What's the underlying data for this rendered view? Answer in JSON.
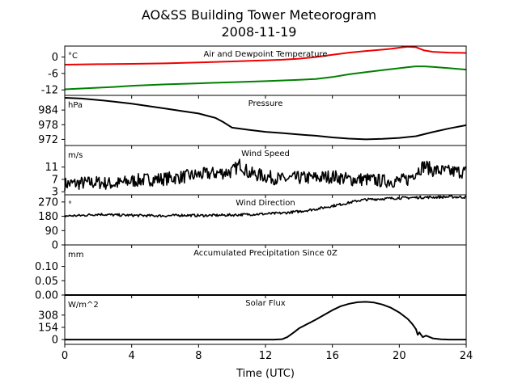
{
  "title": "AO&SS Building Tower Meteorogram",
  "subtitle": "2008-11-19",
  "chart_data": {
    "type": "line",
    "xlabel": "Time (UTC)",
    "xlim": [
      0,
      24
    ],
    "xticks": [
      0,
      4,
      8,
      12,
      16,
      20,
      24
    ],
    "panels": [
      {
        "title": "Air and Dewpoint Temperature",
        "unit": "°C",
        "ylim": [
          -14,
          4
        ],
        "yticks": [
          -12,
          -6,
          0
        ],
        "series": [
          {
            "color": "#ee0000",
            "x": [
              0,
              2,
              4,
              6,
              8,
              10,
              12,
              13,
              14,
              15,
              16,
              17,
              18,
              19,
              19.5,
              20,
              20.5,
              21,
              21.5,
              22,
              23,
              24
            ],
            "y": [
              -2.8,
              -2.6,
              -2.5,
              -2.3,
              -2.0,
              -1.6,
              -1.2,
              -1.0,
              -0.6,
              0.0,
              0.8,
              1.6,
              2.2,
              2.7,
              3.0,
              3.4,
              3.8,
              3.6,
              2.4,
              1.9,
              1.6,
              1.5
            ]
          },
          {
            "color": "#008000",
            "x": [
              0,
              1,
              2,
              3,
              4,
              6,
              8,
              10,
              12,
              14,
              15,
              16,
              17,
              18,
              19,
              20,
              20.5,
              21,
              21.5,
              22,
              23,
              24
            ],
            "y": [
              -11.8,
              -11.5,
              -11.2,
              -10.9,
              -10.5,
              -10.0,
              -9.6,
              -9.2,
              -8.8,
              -8.3,
              -8.0,
              -7.3,
              -6.3,
              -5.5,
              -4.8,
              -4.1,
              -3.7,
              -3.4,
              -3.4,
              -3.6,
              -4.1,
              -4.6
            ]
          }
        ]
      },
      {
        "title": "Pressure",
        "unit": "hPa",
        "ylim": [
          969.5,
          990
        ],
        "yticks": [
          972,
          978,
          984
        ],
        "series": [
          {
            "color": "#000000",
            "x": [
              0,
              1,
              2,
              3,
              4,
              5,
              6,
              7,
              8,
              9,
              9.5,
              10,
              11,
              12,
              13,
              14,
              15,
              16,
              17,
              18,
              19,
              20,
              21,
              22,
              23,
              24
            ],
            "y": [
              989,
              988.7,
              988.1,
              987.4,
              986.6,
              985.6,
              984.6,
              983.6,
              982.6,
              980.8,
              979.0,
              976.8,
              975.9,
              975.1,
              974.6,
              974.0,
              973.5,
              972.8,
              972.3,
              972.0,
              972.2,
              972.6,
              973.3,
              975.0,
              976.5,
              977.8
            ]
          }
        ]
      },
      {
        "title": "Wind Speed",
        "unit": "m/s",
        "ylim": [
          2,
          18
        ],
        "yticks": [
          3,
          7,
          11
        ],
        "series": [
          {
            "color": "#000000",
            "x": [
              0,
              1,
              2,
              3,
              4,
              5,
              6,
              7,
              8,
              9,
              10,
              10.5,
              11,
              12,
              13,
              14,
              15,
              16,
              17,
              18,
              19,
              20,
              20.5,
              21,
              21.5,
              22,
              23,
              24
            ],
            "y": [
              5.5,
              5.8,
              6.0,
              5.5,
              6.5,
              7.0,
              7.2,
              7.8,
              8.5,
              9.0,
              9.5,
              12.0,
              9.0,
              8.0,
              7.0,
              7.5,
              7.5,
              8.0,
              7.0,
              7.0,
              6.5,
              6.5,
              7.0,
              9.5,
              11.5,
              10.0,
              9.5,
              9.5
            ],
            "noise": 2.2
          }
        ]
      },
      {
        "title": "Wind Direction",
        "unit": "°",
        "ylim": [
          0,
          315
        ],
        "yticks": [
          0,
          90,
          180,
          270
        ],
        "series": [
          {
            "color": "#000000",
            "x": [
              0,
              1,
              2,
              3,
              4,
              5,
              6,
              7,
              8,
              9,
              10,
              11,
              12,
              13,
              14,
              15,
              16,
              17,
              17.5,
              18,
              19,
              20,
              21,
              22,
              23,
              24
            ],
            "y": [
              182,
              185,
              193,
              188,
              186,
              184,
              183,
              187,
              185,
              186,
              188,
              192,
              195,
              200,
              210,
              225,
              245,
              265,
              278,
              285,
              290,
              295,
              298,
              300,
              302,
              300
            ],
            "noise": 8
          }
        ]
      },
      {
        "title": "Accumulated Precipitation Since 0Z",
        "unit": "mm",
        "ylim": [
          0,
          0.175
        ],
        "yticks": [
          0.0,
          0.05,
          0.1
        ],
        "ytick_labels": [
          "0.00",
          "0.05",
          "0.10"
        ],
        "series": [
          {
            "color": "#000000",
            "x": [
              0,
              24
            ],
            "y": [
              0,
              0
            ]
          }
        ]
      },
      {
        "title": "Solar Flux",
        "unit": "W/m^2",
        "ylim": [
          -60,
          560
        ],
        "yticks": [
          0,
          154,
          308
        ],
        "series": [
          {
            "color": "#000000",
            "x": [
              0,
              12.5,
              13,
              13.3,
              13.7,
              14,
              15,
              16,
              16.5,
              17,
              17.5,
              18,
              18.5,
              19,
              19.5,
              20,
              20.5,
              20.8,
              21,
              21.1,
              21.2,
              21.4,
              21.6,
              22,
              22.5,
              23,
              24
            ],
            "y": [
              0,
              0,
              5,
              30,
              90,
              140,
              250,
              370,
              420,
              450,
              470,
              475,
              465,
              440,
              400,
              340,
              260,
              190,
              130,
              60,
              90,
              30,
              50,
              15,
              3,
              0,
              0
            ]
          }
        ]
      }
    ]
  }
}
